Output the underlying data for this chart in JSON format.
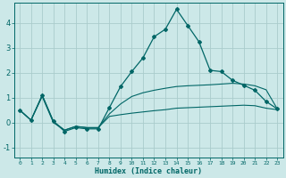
{
  "xlabel": "Humidex (Indice chaleur)",
  "background_color": "#cce8e8",
  "grid_color": "#aacccc",
  "line_color": "#006666",
  "xlim": [
    -0.5,
    23.5
  ],
  "ylim": [
    -1.4,
    4.8
  ],
  "x": [
    0,
    1,
    2,
    3,
    4,
    5,
    6,
    7,
    8,
    9,
    10,
    11,
    12,
    13,
    14,
    15,
    16,
    17,
    18,
    19,
    20,
    21,
    22,
    23
  ],
  "y_main": [
    0.5,
    0.1,
    1.1,
    0.05,
    -0.35,
    -0.2,
    -0.25,
    -0.25,
    0.6,
    1.45,
    2.05,
    2.6,
    3.45,
    3.75,
    4.55,
    3.9,
    3.25,
    2.1,
    2.05,
    1.7,
    1.5,
    1.3,
    0.85,
    0.55
  ],
  "y_upper": [
    0.5,
    0.1,
    1.1,
    0.05,
    -0.3,
    -0.15,
    -0.2,
    -0.2,
    0.35,
    0.75,
    1.05,
    1.2,
    1.3,
    1.38,
    1.45,
    1.48,
    1.5,
    1.52,
    1.55,
    1.58,
    1.55,
    1.48,
    1.32,
    0.55
  ],
  "y_lower": [
    0.5,
    0.1,
    1.05,
    0.0,
    -0.3,
    -0.15,
    -0.2,
    -0.2,
    0.25,
    0.32,
    0.38,
    0.43,
    0.48,
    0.52,
    0.58,
    0.6,
    0.62,
    0.64,
    0.66,
    0.68,
    0.7,
    0.68,
    0.58,
    0.52
  ],
  "yticks": [
    -1,
    0,
    1,
    2,
    3,
    4
  ],
  "xtick_fontsize": 4.5,
  "ytick_fontsize": 6.0,
  "xlabel_fontsize": 6.0,
  "linewidth_main": 0.9,
  "linewidth_band": 0.8,
  "markersize": 2.0
}
